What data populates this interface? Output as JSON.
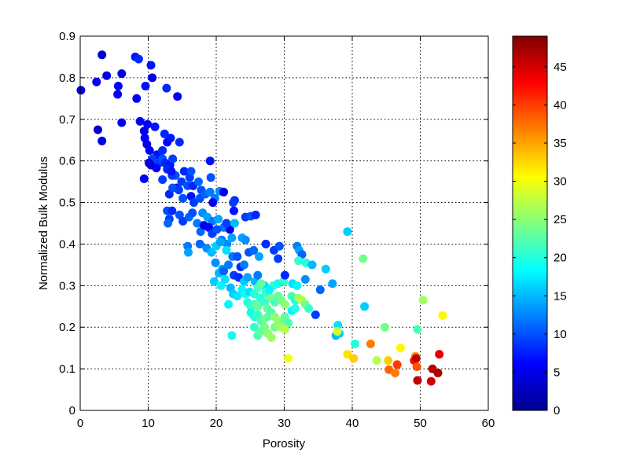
{
  "chart_data": {
    "type": "scatter",
    "title": "",
    "xlabel": "Porosity",
    "ylabel": "Normalized Bulk Modulus",
    "xlim": [
      0,
      60
    ],
    "ylim": [
      0,
      0.9
    ],
    "x_ticks": [
      "0",
      "10",
      "20",
      "30",
      "40",
      "50",
      "60"
    ],
    "y_ticks": [
      "0",
      "0.1",
      "0.2",
      "0.3",
      "0.4",
      "0.5",
      "0.6",
      "0.7",
      "0.8",
      "0.9"
    ],
    "grid": true,
    "grid_style": "dotted",
    "marker": "filled-circle",
    "colormap": "jet",
    "colorbar": {
      "range": [
        0,
        49
      ],
      "ticks": [
        "0",
        "5",
        "10",
        "15",
        "20",
        "25",
        "30",
        "35",
        "40",
        "45"
      ]
    },
    "points": [
      [
        0.1,
        0.77,
        5
      ],
      [
        2.4,
        0.79,
        6
      ],
      [
        3.2,
        0.855,
        4
      ],
      [
        3.9,
        0.805,
        5
      ],
      [
        5.6,
        0.78,
        6
      ],
      [
        6.1,
        0.81,
        5
      ],
      [
        5.5,
        0.76,
        6
      ],
      [
        8.1,
        0.85,
        7
      ],
      [
        8.6,
        0.845,
        8
      ],
      [
        10.4,
        0.83,
        7
      ],
      [
        10.6,
        0.8,
        5
      ],
      [
        9.6,
        0.78,
        7
      ],
      [
        8.3,
        0.75,
        6
      ],
      [
        12.7,
        0.775,
        8
      ],
      [
        14.3,
        0.755,
        6
      ],
      [
        2.6,
        0.675,
        4
      ],
      [
        3.2,
        0.648,
        5
      ],
      [
        6.1,
        0.692,
        5
      ],
      [
        8.8,
        0.695,
        6
      ],
      [
        9.4,
        0.672,
        5
      ],
      [
        9.9,
        0.688,
        6
      ],
      [
        11.0,
        0.682,
        7
      ],
      [
        12.4,
        0.665,
        8
      ],
      [
        12.8,
        0.645,
        6
      ],
      [
        13.3,
        0.655,
        7
      ],
      [
        14.6,
        0.645,
        8
      ],
      [
        9.5,
        0.655,
        6
      ],
      [
        9.8,
        0.64,
        5
      ],
      [
        10.2,
        0.625,
        6
      ],
      [
        11.3,
        0.615,
        7
      ],
      [
        12.1,
        0.625,
        8
      ],
      [
        10.6,
        0.605,
        9
      ],
      [
        11.6,
        0.595,
        9
      ],
      [
        12.1,
        0.605,
        10
      ],
      [
        12.5,
        0.595,
        8
      ],
      [
        13.2,
        0.59,
        7
      ],
      [
        13.6,
        0.605,
        9
      ],
      [
        14.0,
        0.565,
        10
      ],
      [
        15.3,
        0.575,
        8
      ],
      [
        16.1,
        0.56,
        9
      ],
      [
        16.3,
        0.575,
        10
      ],
      [
        10.1,
        0.595,
        5
      ],
      [
        10.4,
        0.59,
        4
      ],
      [
        11.2,
        0.583,
        6
      ],
      [
        12.8,
        0.58,
        8
      ],
      [
        13.5,
        0.565,
        9
      ],
      [
        14.2,
        0.535,
        7
      ],
      [
        14.9,
        0.55,
        9
      ],
      [
        15.8,
        0.54,
        10
      ],
      [
        16.6,
        0.54,
        8
      ],
      [
        17.4,
        0.55,
        11
      ],
      [
        17.8,
        0.53,
        10
      ],
      [
        13.4,
        0.575,
        7
      ],
      [
        9.4,
        0.557,
        6
      ],
      [
        12.1,
        0.555,
        9
      ],
      [
        13.1,
        0.52,
        8
      ],
      [
        13.6,
        0.535,
        10
      ],
      [
        14.5,
        0.53,
        9
      ],
      [
        15.1,
        0.51,
        10
      ],
      [
        16.3,
        0.515,
        7
      ],
      [
        16.7,
        0.5,
        9
      ],
      [
        17.6,
        0.51,
        10
      ],
      [
        18.4,
        0.52,
        11
      ],
      [
        19.1,
        0.525,
        12
      ],
      [
        19.8,
        0.51,
        12
      ],
      [
        20.5,
        0.527,
        13
      ],
      [
        21.1,
        0.525,
        5
      ],
      [
        19.5,
        0.5,
        6
      ],
      [
        19.2,
        0.56,
        10
      ],
      [
        19.1,
        0.6,
        7
      ],
      [
        12.8,
        0.48,
        10
      ],
      [
        13.1,
        0.46,
        9
      ],
      [
        13.5,
        0.48,
        8
      ],
      [
        14.6,
        0.47,
        10
      ],
      [
        15.1,
        0.455,
        9
      ],
      [
        16.0,
        0.465,
        11
      ],
      [
        16.5,
        0.475,
        10
      ],
      [
        17.2,
        0.45,
        12
      ],
      [
        17.7,
        0.43,
        11
      ],
      [
        18.0,
        0.475,
        13
      ],
      [
        18.7,
        0.465,
        14
      ],
      [
        19.4,
        0.455,
        12
      ],
      [
        20.3,
        0.46,
        14
      ],
      [
        21.1,
        0.44,
        12
      ],
      [
        22.0,
        0.435,
        5
      ],
      [
        21.5,
        0.45,
        9
      ],
      [
        22.6,
        0.48,
        7
      ],
      [
        22.7,
        0.505,
        8
      ],
      [
        22.5,
        0.5,
        9
      ],
      [
        24.3,
        0.465,
        9
      ],
      [
        25.1,
        0.467,
        10
      ],
      [
        25.8,
        0.47,
        8
      ],
      [
        12.9,
        0.45,
        11
      ],
      [
        18.2,
        0.445,
        5
      ],
      [
        18.9,
        0.44,
        6
      ],
      [
        19.4,
        0.425,
        9
      ],
      [
        20.1,
        0.435,
        10
      ],
      [
        20.8,
        0.41,
        12
      ],
      [
        21.6,
        0.4,
        13
      ],
      [
        22.3,
        0.415,
        14
      ],
      [
        22.7,
        0.45,
        15
      ],
      [
        23.8,
        0.415,
        14
      ],
      [
        24.3,
        0.41,
        13
      ],
      [
        24.8,
        0.38,
        10
      ],
      [
        25.5,
        0.385,
        11
      ],
      [
        26.3,
        0.37,
        14
      ],
      [
        27.3,
        0.4,
        8
      ],
      [
        28.5,
        0.385,
        9
      ],
      [
        29.1,
        0.365,
        9
      ],
      [
        29.3,
        0.395,
        10
      ],
      [
        15.8,
        0.395,
        12
      ],
      [
        15.9,
        0.38,
        14
      ],
      [
        17.6,
        0.4,
        11
      ],
      [
        18.6,
        0.39,
        13
      ],
      [
        19.3,
        0.38,
        15
      ],
      [
        20.0,
        0.395,
        16
      ],
      [
        20.6,
        0.405,
        14
      ],
      [
        21.5,
        0.385,
        17
      ],
      [
        22.4,
        0.37,
        12
      ],
      [
        23.1,
        0.37,
        10
      ],
      [
        23.6,
        0.345,
        8
      ],
      [
        24.1,
        0.35,
        12
      ],
      [
        19.9,
        0.355,
        13
      ],
      [
        20.4,
        0.33,
        15
      ],
      [
        20.9,
        0.34,
        14
      ],
      [
        21.1,
        0.335,
        11
      ],
      [
        21.8,
        0.35,
        12
      ],
      [
        22.6,
        0.325,
        9
      ],
      [
        23.3,
        0.32,
        8
      ],
      [
        24.1,
        0.31,
        16
      ],
      [
        24.6,
        0.32,
        14
      ],
      [
        25.7,
        0.31,
        15
      ],
      [
        26.1,
        0.325,
        12
      ],
      [
        27.1,
        0.3,
        17
      ],
      [
        27.6,
        0.28,
        22
      ],
      [
        28.4,
        0.3,
        21
      ],
      [
        29.1,
        0.305,
        19
      ],
      [
        29.9,
        0.31,
        21
      ],
      [
        30.1,
        0.325,
        8
      ],
      [
        31.2,
        0.305,
        17
      ],
      [
        31.9,
        0.3,
        18
      ],
      [
        19.7,
        0.31,
        16
      ],
      [
        20.7,
        0.3,
        18
      ],
      [
        21.3,
        0.315,
        17
      ],
      [
        22.1,
        0.295,
        15
      ],
      [
        22.5,
        0.28,
        16
      ],
      [
        23.1,
        0.275,
        17
      ],
      [
        23.8,
        0.29,
        18
      ],
      [
        24.3,
        0.28,
        19
      ],
      [
        24.9,
        0.285,
        17
      ],
      [
        25.6,
        0.28,
        20
      ],
      [
        26.1,
        0.295,
        22
      ],
      [
        26.6,
        0.305,
        23
      ],
      [
        27.3,
        0.285,
        21
      ],
      [
        27.8,
        0.29,
        18
      ],
      [
        21.8,
        0.255,
        18
      ],
      [
        22.3,
        0.18,
        19
      ],
      [
        24.6,
        0.26,
        20
      ],
      [
        25.1,
        0.25,
        21
      ],
      [
        25.6,
        0.255,
        22
      ],
      [
        26.1,
        0.25,
        23
      ],
      [
        26.5,
        0.27,
        20
      ],
      [
        27.1,
        0.26,
        21
      ],
      [
        27.5,
        0.245,
        23
      ],
      [
        28.1,
        0.27,
        24
      ],
      [
        28.6,
        0.26,
        22
      ],
      [
        29.1,
        0.275,
        23
      ],
      [
        29.6,
        0.265,
        24
      ],
      [
        30.1,
        0.255,
        25
      ],
      [
        31.1,
        0.275,
        22
      ],
      [
        31.6,
        0.265,
        20
      ],
      [
        32.1,
        0.27,
        26
      ],
      [
        32.6,
        0.265,
        27
      ],
      [
        33.1,
        0.255,
        24
      ],
      [
        33.6,
        0.245,
        21
      ],
      [
        25.1,
        0.235,
        19
      ],
      [
        25.6,
        0.225,
        20
      ],
      [
        26.1,
        0.23,
        21
      ],
      [
        26.6,
        0.215,
        22
      ],
      [
        27.1,
        0.22,
        24
      ],
      [
        27.6,
        0.225,
        23
      ],
      [
        28.1,
        0.235,
        22
      ],
      [
        28.6,
        0.225,
        25
      ],
      [
        29.1,
        0.215,
        26
      ],
      [
        29.6,
        0.21,
        24
      ],
      [
        30.1,
        0.225,
        23
      ],
      [
        30.6,
        0.21,
        22
      ],
      [
        31.1,
        0.24,
        18
      ],
      [
        31.6,
        0.245,
        20
      ],
      [
        25.6,
        0.2,
        21
      ],
      [
        26.1,
        0.18,
        22
      ],
      [
        26.6,
        0.19,
        23
      ],
      [
        27.1,
        0.2,
        24
      ],
      [
        27.6,
        0.185,
        25
      ],
      [
        28.1,
        0.175,
        26
      ],
      [
        28.6,
        0.2,
        24
      ],
      [
        29.1,
        0.205,
        25
      ],
      [
        29.6,
        0.2,
        26
      ],
      [
        30.1,
        0.195,
        27
      ],
      [
        30.6,
        0.125,
        30
      ],
      [
        31.9,
        0.395,
        12
      ],
      [
        32.2,
        0.385,
        14
      ],
      [
        32.6,
        0.375,
        11
      ],
      [
        32.1,
        0.36,
        21
      ],
      [
        33.2,
        0.355,
        20
      ],
      [
        33.1,
        0.315,
        13
      ],
      [
        34.1,
        0.35,
        15
      ],
      [
        35.3,
        0.29,
        11
      ],
      [
        36.1,
        0.34,
        16
      ],
      [
        37.1,
        0.305,
        14
      ],
      [
        34.6,
        0.23,
        9
      ],
      [
        37.6,
        0.18,
        15
      ],
      [
        37.9,
        0.205,
        17
      ],
      [
        38.1,
        0.185,
        16
      ],
      [
        37.8,
        0.19,
        28
      ],
      [
        39.3,
        0.43,
        16
      ],
      [
        39.3,
        0.135,
        32
      ],
      [
        40.2,
        0.125,
        33
      ],
      [
        40.4,
        0.16,
        20
      ],
      [
        41.6,
        0.365,
        24
      ],
      [
        41.8,
        0.25,
        16
      ],
      [
        42.7,
        0.16,
        37
      ],
      [
        43.6,
        0.12,
        27
      ],
      [
        44.8,
        0.2,
        24
      ],
      [
        45.3,
        0.12,
        33
      ],
      [
        45.4,
        0.098,
        38
      ],
      [
        46.3,
        0.09,
        37
      ],
      [
        46.6,
        0.11,
        40
      ],
      [
        47.1,
        0.15,
        31
      ],
      [
        49.1,
        0.12,
        42
      ],
      [
        49.3,
        0.13,
        36
      ],
      [
        49.4,
        0.125,
        46
      ],
      [
        49.5,
        0.105,
        39
      ],
      [
        49.6,
        0.072,
        46
      ],
      [
        49.6,
        0.195,
        22
      ],
      [
        50.4,
        0.265,
        26
      ],
      [
        51.6,
        0.07,
        45
      ],
      [
        51.8,
        0.1,
        46
      ],
      [
        52.6,
        0.09,
        47
      ],
      [
        52.8,
        0.135,
        44
      ],
      [
        53.3,
        0.228,
        31
      ]
    ]
  }
}
